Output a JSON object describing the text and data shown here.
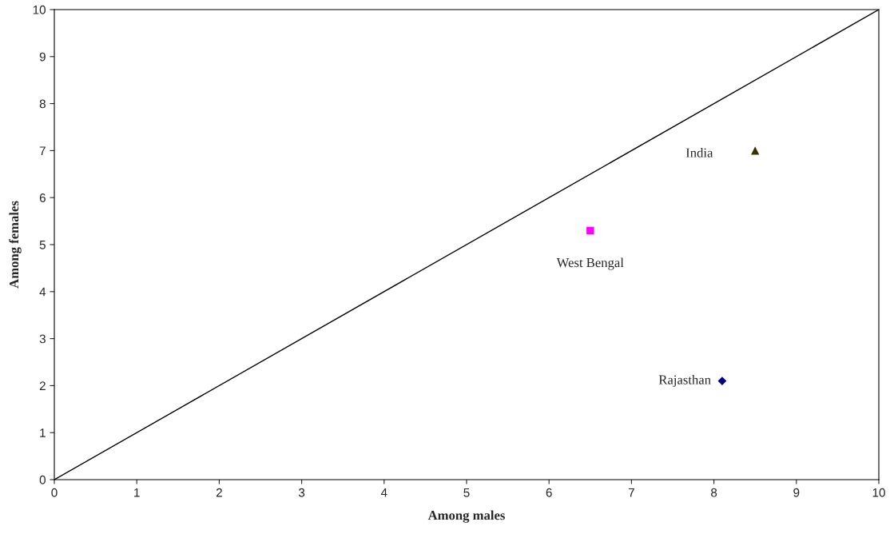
{
  "chart_data": {
    "type": "scatter",
    "xlabel": "Among males",
    "ylabel": "Among females",
    "xlim": [
      0,
      10
    ],
    "ylim": [
      0,
      10
    ],
    "xticks": [
      0,
      1,
      2,
      3,
      4,
      5,
      6,
      7,
      8,
      9,
      10
    ],
    "yticks": [
      0,
      1,
      2,
      3,
      4,
      5,
      6,
      7,
      8,
      9,
      10
    ],
    "grid": false,
    "legend": false,
    "series": [
      {
        "type": "line",
        "color": "#000000",
        "x": [
          0,
          10
        ],
        "values": [
          0,
          10
        ],
        "marker": "none",
        "line_style": "solid"
      },
      {
        "name": "Rajasthan",
        "color": "#000080",
        "x": [
          8.1
        ],
        "values": [
          2.1
        ],
        "marker": "diamond"
      },
      {
        "name": "West Bengal",
        "color": "#ff00ff",
        "x": [
          6.5
        ],
        "values": [
          5.3
        ],
        "marker": "square"
      },
      {
        "name": "India",
        "color": "#333300",
        "x": [
          8.5
        ],
        "values": [
          7.0
        ],
        "marker": "triangle"
      }
    ]
  }
}
